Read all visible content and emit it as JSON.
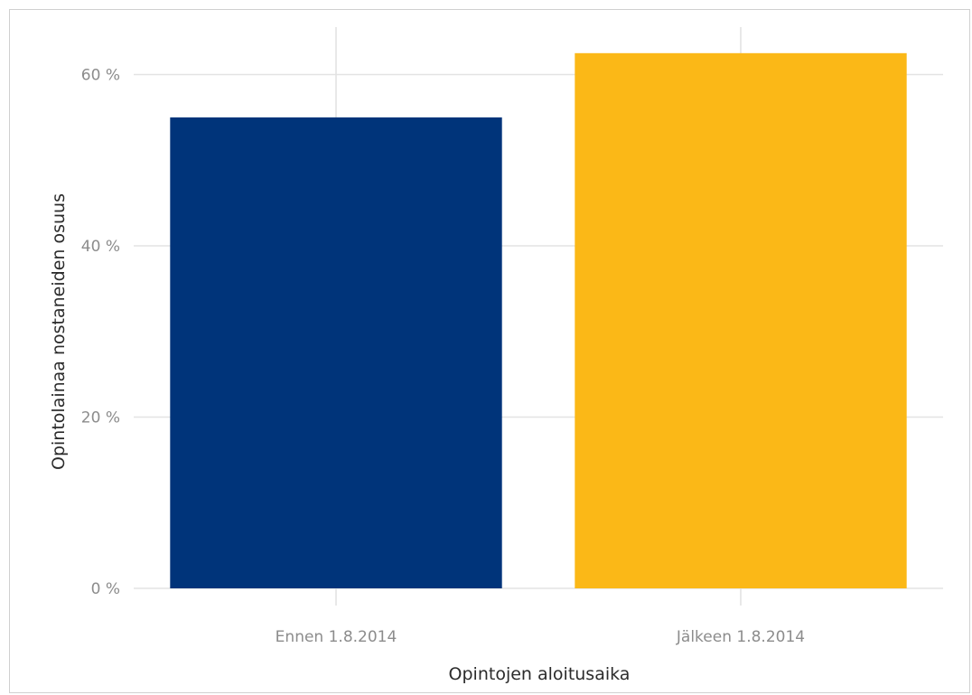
{
  "chart_data": {
    "type": "bar",
    "categories": [
      "Ennen 1.8.2014",
      "Jälkeen 1.8.2014"
    ],
    "values": [
      55.0,
      62.5
    ],
    "colors": [
      "#00347a",
      "#fbb817"
    ],
    "ylim": [
      0,
      65
    ],
    "yticks": [
      0,
      20,
      40,
      60
    ],
    "ytick_labels": [
      "0 %",
      "20 %",
      "40 %",
      "60 %"
    ],
    "xlabel": "Opintojen aloitusaika",
    "ylabel": "Opintolainaa nostaneiden osuus",
    "grid": true,
    "gridColor": "#e3e3e3"
  }
}
